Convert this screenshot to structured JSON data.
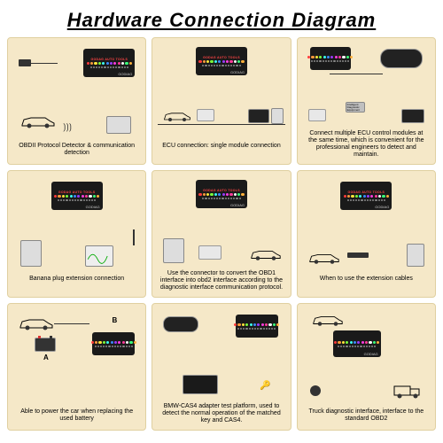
{
  "title": "Hardware Connection Diagram",
  "background": "#ffffff",
  "panel_bg": "#f5e8c8",
  "device": {
    "body_color": "#1a1a1a",
    "header_text": "GODAG AUTO TOOLS",
    "brand_text": "GODIAG",
    "led_colors": [
      "#ff3b3b",
      "#ff9a3b",
      "#ffe63b",
      "#7cff3b",
      "#3bfff0",
      "#3b8aff",
      "#9a3bff",
      "#ff3be0",
      "#ff3b9a",
      "#ffffff",
      "#3bff7a",
      "#ffb03b"
    ]
  },
  "panels": [
    {
      "caption": "OBDII Protocol Detector & communication detection"
    },
    {
      "caption": "ECU connection: single module connection"
    },
    {
      "caption": "Connect multiple ECU control modules at the same time, which is convenient for the professional engineers to detect and maintain."
    },
    {
      "caption": "Banana plug extension connection"
    },
    {
      "caption": "Use the connector to convert the OBD1 interface into obd2 interface according to the diagnostic interface communication protocol."
    },
    {
      "caption": "When to use the extension cables"
    },
    {
      "caption": "Able to power the car when replacing the used battery"
    },
    {
      "caption": "BMW-CAS4 adapter test platform, used to detect the normal operation of the matched key and CAS4."
    },
    {
      "caption": "Truck diagnostic interface, interface to the standard OBD2"
    }
  ],
  "labels": {
    "a": "A",
    "b": "B"
  }
}
